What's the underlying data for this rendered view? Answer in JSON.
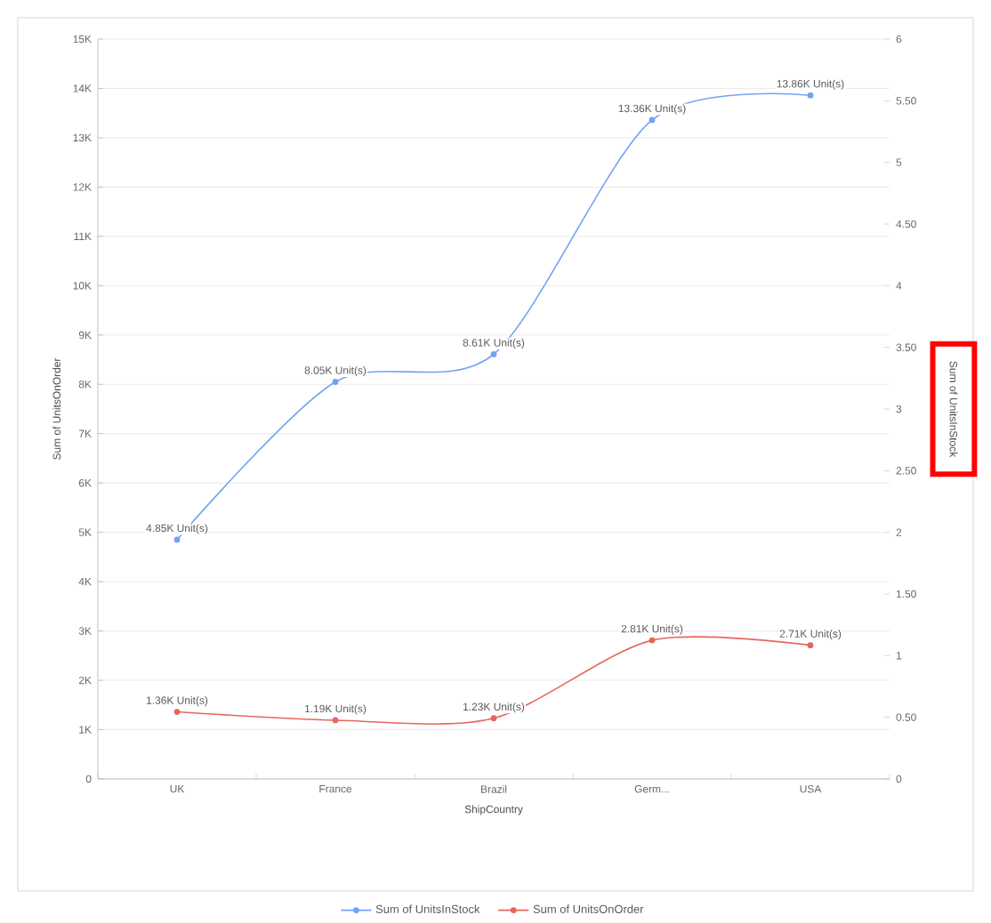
{
  "chart_data": {
    "type": "line",
    "categories": [
      "UK",
      "France",
      "Brazil",
      "Germ...",
      "USA"
    ],
    "xlabel": "ShipCountry",
    "ylabel": "Sum of UnitsOnOrder",
    "y2label": "Sum of UnitsInStock",
    "series": [
      {
        "name": "Sum of UnitsInStock",
        "color": "#73a2f5",
        "values": [
          4850,
          8050,
          8610,
          13360,
          13860
        ],
        "value_labels": [
          "4.85K Unit(s)",
          "8.05K Unit(s)",
          "8.61K Unit(s)",
          "13.36K Unit(s)",
          "13.86K Unit(s)"
        ]
      },
      {
        "name": "Sum of UnitsOnOrder",
        "color": "#e8665b",
        "values": [
          1360,
          1190,
          1230,
          2810,
          2710
        ],
        "value_labels": [
          "1.36K Unit(s)",
          "1.19K Unit(s)",
          "1.23K Unit(s)",
          "2.81K Unit(s)",
          "2.71K Unit(s)"
        ]
      }
    ],
    "ylim": [
      0,
      15000
    ],
    "yticks": [
      0,
      {
        "value": 1000,
        "label": "1K"
      },
      {
        "value": 2000,
        "label": "2K"
      },
      {
        "value": 3000,
        "label": "3K"
      },
      {
        "value": 4000,
        "label": "4K"
      },
      {
        "value": 5000,
        "label": "5K"
      },
      {
        "value": 6000,
        "label": "6K"
      },
      {
        "value": 7000,
        "label": "7K"
      },
      {
        "value": 8000,
        "label": "8K"
      },
      {
        "value": 9000,
        "label": "9K"
      },
      {
        "value": 10000,
        "label": "10K"
      },
      {
        "value": 11000,
        "label": "11K"
      },
      {
        "value": 12000,
        "label": "12K"
      },
      {
        "value": 13000,
        "label": "13K"
      },
      {
        "value": 14000,
        "label": "14K"
      },
      {
        "value": 15000,
        "label": "15K"
      }
    ],
    "y2lim": [
      0,
      6
    ],
    "y2ticks": [
      0,
      {
        "value": 0.5,
        "label": "0.50"
      },
      1,
      {
        "value": 1.5,
        "label": "1.50"
      },
      2,
      {
        "value": 2.5,
        "label": "2.50"
      },
      3,
      {
        "value": 3.5,
        "label": "3.50"
      },
      4,
      {
        "value": 4.5,
        "label": "4.50"
      },
      5,
      {
        "value": 5.5,
        "label": "5.50"
      },
      6
    ],
    "grid": "y",
    "legend": "bottom",
    "marker": "circle",
    "line_style": "solid"
  }
}
